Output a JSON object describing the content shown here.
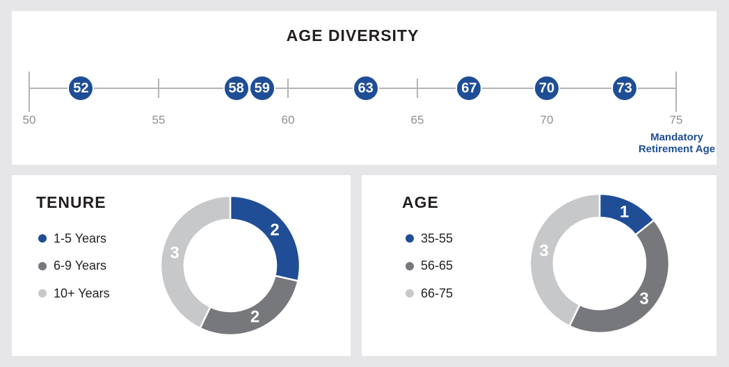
{
  "palette": {
    "blue": "#1f4e96",
    "dark_gray": "#77787b",
    "light_gray": "#c7c8ca",
    "background": "#e6e6e8",
    "panel": "#ffffff",
    "axis_line": "#b1b3b6",
    "axis_label": "#8d8f92",
    "text": "#231f20"
  },
  "chart_data": [
    {
      "type": "scatter",
      "title": "AGE DIVERSITY",
      "x": [
        52,
        58,
        59,
        63,
        67,
        70,
        73
      ],
      "xlim": [
        50,
        75
      ],
      "xticks": [
        50,
        55,
        60,
        65,
        70,
        75
      ],
      "marker_style": "filled-circle-with-value",
      "marker_color": "#1f4e96",
      "annotation": {
        "line1": "Mandatory",
        "line2": "Retirement Age",
        "anchor_x": 75,
        "color": "#1f4e96"
      }
    },
    {
      "type": "pie",
      "donut": true,
      "title": "TENURE",
      "categories": [
        "1-5 Years",
        "6-9 Years",
        "10+ Years"
      ],
      "values": [
        2,
        2,
        3
      ],
      "colors": [
        "#1f4e96",
        "#77787b",
        "#c7c8ca"
      ],
      "labels_on_slices": [
        "2",
        "2",
        "3"
      ],
      "legend_position": "left",
      "start_angle": "top",
      "direction": "clockwise"
    },
    {
      "type": "pie",
      "donut": true,
      "title": "AGE",
      "categories": [
        "35-55",
        "56-65",
        "66-75"
      ],
      "values": [
        1,
        3,
        3
      ],
      "colors": [
        "#1f4e96",
        "#77787b",
        "#c7c8ca"
      ],
      "labels_on_slices": [
        "1",
        "3",
        "3"
      ],
      "legend_position": "left",
      "start_angle": "top",
      "direction": "clockwise"
    }
  ]
}
